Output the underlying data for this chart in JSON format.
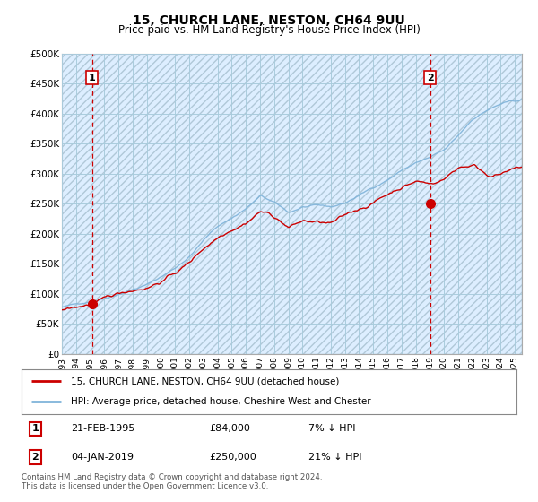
{
  "title": "15, CHURCH LANE, NESTON, CH64 9UU",
  "subtitle": "Price paid vs. HM Land Registry's House Price Index (HPI)",
  "ytick_labels": [
    "£0",
    "£50K",
    "£100K",
    "£150K",
    "£200K",
    "£250K",
    "£300K",
    "£350K",
    "£400K",
    "£450K",
    "£500K"
  ],
  "yticks": [
    0,
    50000,
    100000,
    150000,
    200000,
    250000,
    300000,
    350000,
    400000,
    450000,
    500000
  ],
  "ylim": [
    0,
    500000
  ],
  "legend_line1": "15, CHURCH LANE, NESTON, CH64 9UU (detached house)",
  "legend_line2": "HPI: Average price, detached house, Cheshire West and Chester",
  "transaction1_date": "21-FEB-1995",
  "transaction1_price": 84000,
  "transaction1_pct": "7% ↓ HPI",
  "transaction2_date": "04-JAN-2019",
  "transaction2_price": 250000,
  "transaction2_pct": "21% ↓ HPI",
  "footer": "Contains HM Land Registry data © Crown copyright and database right 2024.\nThis data is licensed under the Open Government Licence v3.0.",
  "line_color_price": "#cc0000",
  "line_color_hpi": "#7fb3d9",
  "marker_color": "#cc0000",
  "vline_color": "#cc0000",
  "bg_color": "#ffffff",
  "plot_bg_color": "#ddeeff",
  "grid_color": "#aaccdd",
  "transaction1_x": 1995.13,
  "transaction2_x": 2019.01
}
